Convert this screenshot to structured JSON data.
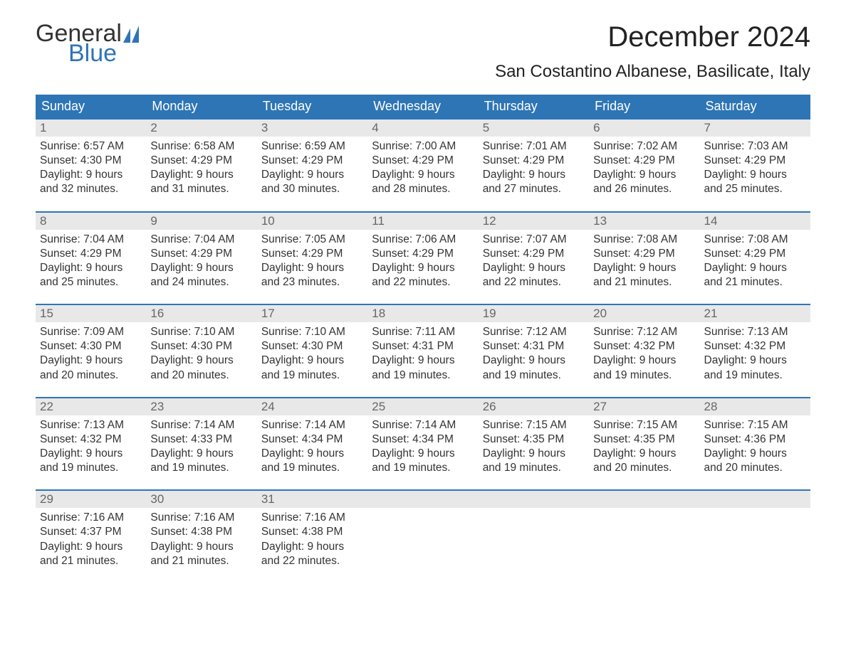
{
  "brand": {
    "word1": "General",
    "word2": "Blue",
    "accent_color": "#2e75b6"
  },
  "title": "December 2024",
  "location": "San Costantino Albanese, Basilicate, Italy",
  "colors": {
    "header_bg": "#2e75b6",
    "header_text": "#ffffff",
    "daynum_bg": "#e8e8e8",
    "daynum_text": "#666666",
    "body_text": "#333333",
    "week_border": "#2e75b6",
    "page_bg": "#ffffff"
  },
  "day_names": [
    "Sunday",
    "Monday",
    "Tuesday",
    "Wednesday",
    "Thursday",
    "Friday",
    "Saturday"
  ],
  "weeks": [
    [
      {
        "n": "1",
        "sr": "Sunrise: 6:57 AM",
        "ss": "Sunset: 4:30 PM",
        "d1": "Daylight: 9 hours",
        "d2": "and 32 minutes."
      },
      {
        "n": "2",
        "sr": "Sunrise: 6:58 AM",
        "ss": "Sunset: 4:29 PM",
        "d1": "Daylight: 9 hours",
        "d2": "and 31 minutes."
      },
      {
        "n": "3",
        "sr": "Sunrise: 6:59 AM",
        "ss": "Sunset: 4:29 PM",
        "d1": "Daylight: 9 hours",
        "d2": "and 30 minutes."
      },
      {
        "n": "4",
        "sr": "Sunrise: 7:00 AM",
        "ss": "Sunset: 4:29 PM",
        "d1": "Daylight: 9 hours",
        "d2": "and 28 minutes."
      },
      {
        "n": "5",
        "sr": "Sunrise: 7:01 AM",
        "ss": "Sunset: 4:29 PM",
        "d1": "Daylight: 9 hours",
        "d2": "and 27 minutes."
      },
      {
        "n": "6",
        "sr": "Sunrise: 7:02 AM",
        "ss": "Sunset: 4:29 PM",
        "d1": "Daylight: 9 hours",
        "d2": "and 26 minutes."
      },
      {
        "n": "7",
        "sr": "Sunrise: 7:03 AM",
        "ss": "Sunset: 4:29 PM",
        "d1": "Daylight: 9 hours",
        "d2": "and 25 minutes."
      }
    ],
    [
      {
        "n": "8",
        "sr": "Sunrise: 7:04 AM",
        "ss": "Sunset: 4:29 PM",
        "d1": "Daylight: 9 hours",
        "d2": "and 25 minutes."
      },
      {
        "n": "9",
        "sr": "Sunrise: 7:04 AM",
        "ss": "Sunset: 4:29 PM",
        "d1": "Daylight: 9 hours",
        "d2": "and 24 minutes."
      },
      {
        "n": "10",
        "sr": "Sunrise: 7:05 AM",
        "ss": "Sunset: 4:29 PM",
        "d1": "Daylight: 9 hours",
        "d2": "and 23 minutes."
      },
      {
        "n": "11",
        "sr": "Sunrise: 7:06 AM",
        "ss": "Sunset: 4:29 PM",
        "d1": "Daylight: 9 hours",
        "d2": "and 22 minutes."
      },
      {
        "n": "12",
        "sr": "Sunrise: 7:07 AM",
        "ss": "Sunset: 4:29 PM",
        "d1": "Daylight: 9 hours",
        "d2": "and 22 minutes."
      },
      {
        "n": "13",
        "sr": "Sunrise: 7:08 AM",
        "ss": "Sunset: 4:29 PM",
        "d1": "Daylight: 9 hours",
        "d2": "and 21 minutes."
      },
      {
        "n": "14",
        "sr": "Sunrise: 7:08 AM",
        "ss": "Sunset: 4:29 PM",
        "d1": "Daylight: 9 hours",
        "d2": "and 21 minutes."
      }
    ],
    [
      {
        "n": "15",
        "sr": "Sunrise: 7:09 AM",
        "ss": "Sunset: 4:30 PM",
        "d1": "Daylight: 9 hours",
        "d2": "and 20 minutes."
      },
      {
        "n": "16",
        "sr": "Sunrise: 7:10 AM",
        "ss": "Sunset: 4:30 PM",
        "d1": "Daylight: 9 hours",
        "d2": "and 20 minutes."
      },
      {
        "n": "17",
        "sr": "Sunrise: 7:10 AM",
        "ss": "Sunset: 4:30 PM",
        "d1": "Daylight: 9 hours",
        "d2": "and 19 minutes."
      },
      {
        "n": "18",
        "sr": "Sunrise: 7:11 AM",
        "ss": "Sunset: 4:31 PM",
        "d1": "Daylight: 9 hours",
        "d2": "and 19 minutes."
      },
      {
        "n": "19",
        "sr": "Sunrise: 7:12 AM",
        "ss": "Sunset: 4:31 PM",
        "d1": "Daylight: 9 hours",
        "d2": "and 19 minutes."
      },
      {
        "n": "20",
        "sr": "Sunrise: 7:12 AM",
        "ss": "Sunset: 4:32 PM",
        "d1": "Daylight: 9 hours",
        "d2": "and 19 minutes."
      },
      {
        "n": "21",
        "sr": "Sunrise: 7:13 AM",
        "ss": "Sunset: 4:32 PM",
        "d1": "Daylight: 9 hours",
        "d2": "and 19 minutes."
      }
    ],
    [
      {
        "n": "22",
        "sr": "Sunrise: 7:13 AM",
        "ss": "Sunset: 4:32 PM",
        "d1": "Daylight: 9 hours",
        "d2": "and 19 minutes."
      },
      {
        "n": "23",
        "sr": "Sunrise: 7:14 AM",
        "ss": "Sunset: 4:33 PM",
        "d1": "Daylight: 9 hours",
        "d2": "and 19 minutes."
      },
      {
        "n": "24",
        "sr": "Sunrise: 7:14 AM",
        "ss": "Sunset: 4:34 PM",
        "d1": "Daylight: 9 hours",
        "d2": "and 19 minutes."
      },
      {
        "n": "25",
        "sr": "Sunrise: 7:14 AM",
        "ss": "Sunset: 4:34 PM",
        "d1": "Daylight: 9 hours",
        "d2": "and 19 minutes."
      },
      {
        "n": "26",
        "sr": "Sunrise: 7:15 AM",
        "ss": "Sunset: 4:35 PM",
        "d1": "Daylight: 9 hours",
        "d2": "and 19 minutes."
      },
      {
        "n": "27",
        "sr": "Sunrise: 7:15 AM",
        "ss": "Sunset: 4:35 PM",
        "d1": "Daylight: 9 hours",
        "d2": "and 20 minutes."
      },
      {
        "n": "28",
        "sr": "Sunrise: 7:15 AM",
        "ss": "Sunset: 4:36 PM",
        "d1": "Daylight: 9 hours",
        "d2": "and 20 minutes."
      }
    ],
    [
      {
        "n": "29",
        "sr": "Sunrise: 7:16 AM",
        "ss": "Sunset: 4:37 PM",
        "d1": "Daylight: 9 hours",
        "d2": "and 21 minutes."
      },
      {
        "n": "30",
        "sr": "Sunrise: 7:16 AM",
        "ss": "Sunset: 4:38 PM",
        "d1": "Daylight: 9 hours",
        "d2": "and 21 minutes."
      },
      {
        "n": "31",
        "sr": "Sunrise: 7:16 AM",
        "ss": "Sunset: 4:38 PM",
        "d1": "Daylight: 9 hours",
        "d2": "and 22 minutes."
      },
      null,
      null,
      null,
      null
    ]
  ]
}
